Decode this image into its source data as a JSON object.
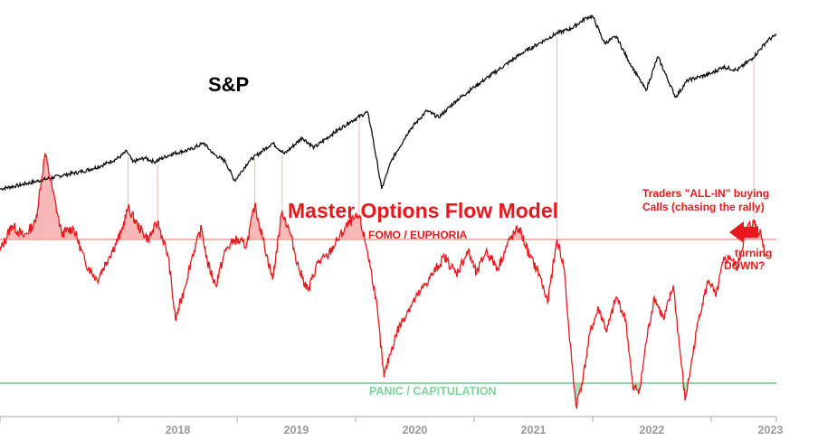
{
  "chart_data": {
    "type": "line",
    "sp_label": "S&P",
    "title": "Master Options Flow Model",
    "zones": {
      "top_label": "FOMO / EUPHORIA",
      "bottom_label": "PANIC / CAPITULATION",
      "top_color": "#f4b4b4",
      "bottom_color": "#8ed6a6"
    },
    "annotations": {
      "note_line1": "Traders \"ALL-IN\" buying",
      "note_line2": "Calls (chasing the rally)",
      "arrow_line1": "turning",
      "arrow_line2": "DOWN?"
    },
    "x_ticks": [
      "2018",
      "2019",
      "2020",
      "2021",
      "2022",
      "2023"
    ],
    "x_range": [
      2017.0,
      2023.55
    ],
    "colors": {
      "sp_line": "#111111",
      "model_line": "#e8181c",
      "model_fill": "#f6a6a6",
      "signal_lines": "#f2b6b6",
      "axis": "#aaaaaa"
    },
    "series": [
      {
        "key": "sp",
        "points": [
          [
            2017.0,
            2240
          ],
          [
            2017.15,
            2290
          ],
          [
            2017.3,
            2350
          ],
          [
            2017.45,
            2410
          ],
          [
            2017.55,
            2450
          ],
          [
            2017.7,
            2500
          ],
          [
            2017.85,
            2580
          ],
          [
            2018.0,
            2700
          ],
          [
            2018.07,
            2800
          ],
          [
            2018.12,
            2640
          ],
          [
            2018.22,
            2700
          ],
          [
            2018.3,
            2640
          ],
          [
            2018.45,
            2760
          ],
          [
            2018.6,
            2820
          ],
          [
            2018.72,
            2920
          ],
          [
            2018.8,
            2760
          ],
          [
            2018.9,
            2650
          ],
          [
            2018.98,
            2360
          ],
          [
            2019.1,
            2650
          ],
          [
            2019.3,
            2920
          ],
          [
            2019.4,
            2760
          ],
          [
            2019.55,
            3000
          ],
          [
            2019.65,
            2850
          ],
          [
            2019.8,
            3050
          ],
          [
            2019.95,
            3230
          ],
          [
            2020.1,
            3380
          ],
          [
            2020.13,
            3150
          ],
          [
            2020.22,
            2240
          ],
          [
            2020.3,
            2650
          ],
          [
            2020.45,
            3100
          ],
          [
            2020.6,
            3400
          ],
          [
            2020.7,
            3300
          ],
          [
            2020.85,
            3550
          ],
          [
            2021.0,
            3750
          ],
          [
            2021.2,
            4000
          ],
          [
            2021.4,
            4250
          ],
          [
            2021.55,
            4400
          ],
          [
            2021.7,
            4550
          ],
          [
            2021.82,
            4620
          ],
          [
            2021.95,
            4780
          ],
          [
            2022.0,
            4800
          ],
          [
            2022.1,
            4400
          ],
          [
            2022.2,
            4500
          ],
          [
            2022.3,
            4150
          ],
          [
            2022.45,
            3700
          ],
          [
            2022.55,
            4200
          ],
          [
            2022.7,
            3600
          ],
          [
            2022.8,
            3850
          ],
          [
            2022.9,
            3900
          ],
          [
            2023.0,
            3950
          ],
          [
            2023.1,
            4050
          ],
          [
            2023.22,
            4000
          ],
          [
            2023.35,
            4180
          ],
          [
            2023.48,
            4450
          ],
          [
            2023.55,
            4520
          ]
        ]
      },
      {
        "key": "model",
        "points": [
          [
            2017.0,
            -0.2
          ],
          [
            2017.1,
            0.25
          ],
          [
            2017.2,
            0.05
          ],
          [
            2017.3,
            0.3
          ],
          [
            2017.38,
            1.5
          ],
          [
            2017.44,
            0.9
          ],
          [
            2017.52,
            0.1
          ],
          [
            2017.62,
            0.2
          ],
          [
            2017.72,
            -0.4
          ],
          [
            2017.82,
            -0.7
          ],
          [
            2017.92,
            -0.3
          ],
          [
            2018.02,
            0.1
          ],
          [
            2018.08,
            0.55
          ],
          [
            2018.16,
            0.25
          ],
          [
            2018.25,
            0.0
          ],
          [
            2018.33,
            0.3
          ],
          [
            2018.42,
            -0.3
          ],
          [
            2018.48,
            -1.4
          ],
          [
            2018.55,
            -0.9
          ],
          [
            2018.62,
            -0.3
          ],
          [
            2018.7,
            0.2
          ],
          [
            2018.75,
            -0.4
          ],
          [
            2018.82,
            -0.8
          ],
          [
            2018.9,
            -0.2
          ],
          [
            2018.98,
            0.0
          ],
          [
            2019.08,
            -0.1
          ],
          [
            2019.15,
            0.6
          ],
          [
            2019.22,
            0.0
          ],
          [
            2019.3,
            -0.7
          ],
          [
            2019.38,
            0.5
          ],
          [
            2019.45,
            0.1
          ],
          [
            2019.52,
            -0.5
          ],
          [
            2019.6,
            -0.9
          ],
          [
            2019.68,
            -0.4
          ],
          [
            2019.76,
            -0.3
          ],
          [
            2019.85,
            0.0
          ],
          [
            2019.95,
            0.3
          ],
          [
            2020.03,
            0.4
          ],
          [
            2020.1,
            -0.2
          ],
          [
            2020.17,
            -1.0
          ],
          [
            2020.24,
            -2.4
          ],
          [
            2020.29,
            -2.0
          ],
          [
            2020.35,
            -1.6
          ],
          [
            2020.45,
            -1.2
          ],
          [
            2020.55,
            -0.9
          ],
          [
            2020.65,
            -0.6
          ],
          [
            2020.75,
            -0.3
          ],
          [
            2020.85,
            -0.6
          ],
          [
            2020.95,
            -0.2
          ],
          [
            2021.02,
            -0.6
          ],
          [
            2021.1,
            -0.2
          ],
          [
            2021.2,
            -0.5
          ],
          [
            2021.3,
            0.0
          ],
          [
            2021.38,
            0.2
          ],
          [
            2021.47,
            -0.3
          ],
          [
            2021.55,
            -0.6
          ],
          [
            2021.62,
            -1.1
          ],
          [
            2021.7,
            0.0
          ],
          [
            2021.76,
            -0.5
          ],
          [
            2021.8,
            -1.6
          ],
          [
            2021.86,
            -2.9
          ],
          [
            2021.92,
            -2.4
          ],
          [
            2021.98,
            -1.6
          ],
          [
            2022.05,
            -1.2
          ],
          [
            2022.12,
            -1.6
          ],
          [
            2022.2,
            -1.0
          ],
          [
            2022.28,
            -1.4
          ],
          [
            2022.34,
            -2.6
          ],
          [
            2022.4,
            -2.6
          ],
          [
            2022.45,
            -1.8
          ],
          [
            2022.52,
            -1.0
          ],
          [
            2022.6,
            -1.4
          ],
          [
            2022.68,
            -0.8
          ],
          [
            2022.73,
            -1.8
          ],
          [
            2022.78,
            -2.8
          ],
          [
            2022.83,
            -2.2
          ],
          [
            2022.9,
            -1.3
          ],
          [
            2022.98,
            -0.7
          ],
          [
            2023.04,
            -1.0
          ],
          [
            2023.1,
            -0.4
          ],
          [
            2023.16,
            -0.3
          ],
          [
            2023.22,
            -0.5
          ],
          [
            2023.3,
            0.2
          ],
          [
            2023.36,
            0.3
          ],
          [
            2023.42,
            0.1
          ],
          [
            2023.46,
            -0.3
          ]
        ]
      }
    ],
    "signals": [
      2017.38,
      2018.08,
      2018.33,
      2019.15,
      2019.38,
      2020.03,
      2021.7,
      2023.36
    ]
  }
}
